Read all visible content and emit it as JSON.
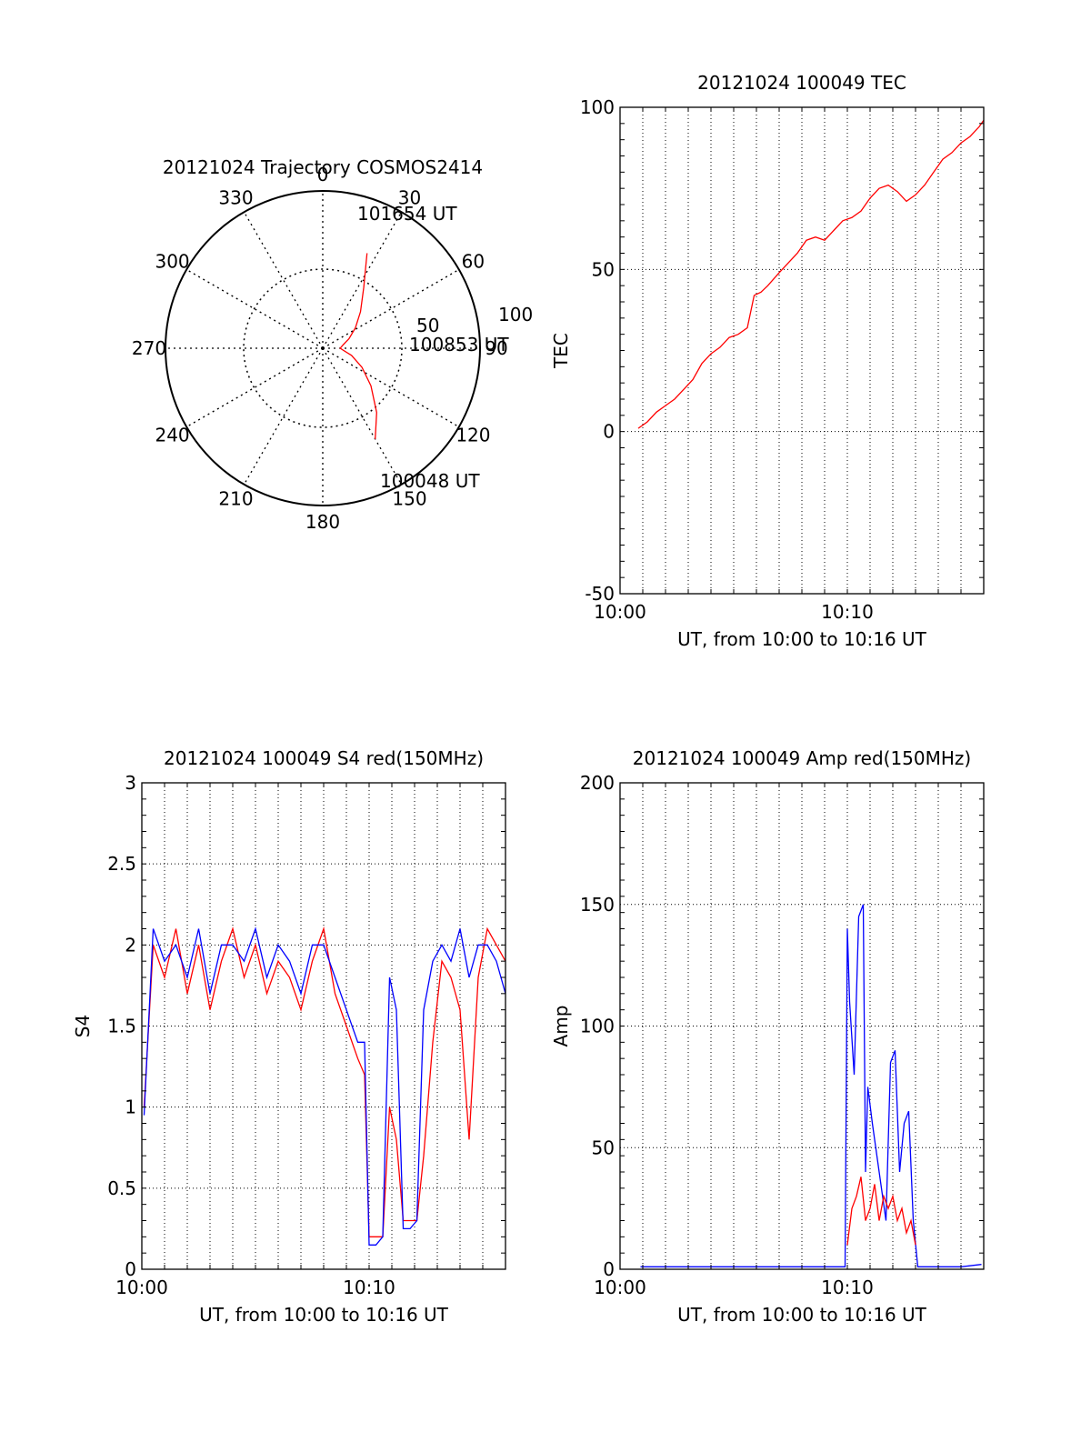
{
  "colors": {
    "red": "#ff0000",
    "blue": "#0000ff",
    "black": "#000000",
    "grid": "#000000"
  },
  "chart_data": [
    {
      "type": "polar",
      "title": "20121024 Trajectory COSMOS2414",
      "azimuth_labels": [
        "0",
        "30",
        "60",
        "90",
        "120",
        "150",
        "180",
        "210",
        "240",
        "270",
        "300",
        "330"
      ],
      "radial_labels": [
        "50",
        "100"
      ],
      "start_label": "100048 UT",
      "mid_label": "100853 UT",
      "end_label": "101654 UT",
      "trajectory": {
        "elevation_deg": [
          30,
          42,
          55,
          65,
          73,
          78,
          80,
          78,
          74,
          68,
          60,
          48,
          30
        ],
        "azimuth_deg": [
          150,
          140,
          128,
          116,
          104,
          96,
          90,
          80,
          70,
          58,
          46,
          34,
          25
        ]
      }
    },
    {
      "type": "line",
      "title": "20121024 100049 TEC",
      "xlabel": "UT, from 10:00 to 10:16 UT",
      "ylabel": "TEC",
      "xticks": [
        "10:00",
        "10:10"
      ],
      "yticks": [
        "100",
        "50",
        "0",
        "-50"
      ],
      "xlim": [
        0,
        16
      ],
      "ylim": [
        -50,
        100
      ],
      "series": [
        {
          "color": "red",
          "x": [
            0.8,
            1.2,
            1.6,
            2.0,
            2.4,
            2.8,
            3.2,
            3.6,
            4.0,
            4.4,
            4.8,
            5.2,
            5.6,
            5.9,
            6.2,
            6.5,
            7.0,
            7.4,
            7.8,
            8.2,
            8.6,
            9.0,
            9.4,
            9.8,
            10.2,
            10.6,
            11.0,
            11.4,
            11.8,
            12.2,
            12.6,
            13.0,
            13.4,
            13.8,
            14.2,
            14.6,
            15.0,
            15.4,
            15.8,
            16.0
          ],
          "y": [
            1,
            3,
            6,
            8,
            10,
            13,
            16,
            21,
            24,
            26,
            29,
            30,
            32,
            42,
            43,
            45,
            49,
            52,
            55,
            59,
            60,
            59,
            62,
            65,
            66,
            68,
            72,
            75,
            76,
            74,
            71,
            73,
            76,
            80,
            84,
            86,
            89,
            91,
            94,
            96
          ]
        }
      ]
    },
    {
      "type": "line",
      "title": "20121024 100049 S4 red(150MHz)",
      "xlabel": "UT, from 10:00 to 10:16 UT",
      "ylabel": "S4",
      "xticks": [
        "10:00",
        "10:10"
      ],
      "yticks": [
        "3",
        "2.5",
        "2",
        "1.5",
        "1",
        "0.5",
        "0"
      ],
      "xlim": [
        0,
        16
      ],
      "ylim": [
        0,
        3
      ],
      "series": [
        {
          "color": "red",
          "x": [
            0.1,
            0.5,
            1.0,
            1.5,
            2.0,
            2.5,
            3.0,
            3.5,
            4.0,
            4.5,
            5.0,
            5.5,
            6.0,
            6.5,
            7.0,
            7.5,
            8.0,
            8.5,
            9.0,
            9.5,
            9.8,
            10.0,
            10.3,
            10.6,
            10.9,
            11.2,
            11.5,
            11.8,
            12.1,
            12.4,
            12.8,
            13.2,
            13.6,
            14.0,
            14.4,
            14.8,
            15.2,
            15.6,
            16.0
          ],
          "y": [
            1.0,
            2.0,
            1.8,
            2.1,
            1.7,
            2.0,
            1.6,
            1.9,
            2.1,
            1.8,
            2.0,
            1.7,
            1.9,
            1.8,
            1.6,
            1.9,
            2.1,
            1.7,
            1.5,
            1.3,
            1.2,
            0.2,
            0.2,
            0.2,
            1.0,
            0.8,
            0.3,
            0.3,
            0.3,
            0.7,
            1.4,
            1.9,
            1.8,
            1.6,
            0.8,
            1.8,
            2.1,
            2.0,
            1.9
          ]
        },
        {
          "color": "blue",
          "x": [
            0.1,
            0.5,
            1.0,
            1.5,
            2.0,
            2.5,
            3.0,
            3.5,
            4.0,
            4.5,
            5.0,
            5.5,
            6.0,
            6.5,
            7.0,
            7.5,
            8.0,
            8.5,
            9.0,
            9.5,
            9.8,
            10.0,
            10.3,
            10.6,
            10.9,
            11.2,
            11.5,
            11.8,
            12.1,
            12.4,
            12.8,
            13.2,
            13.6,
            14.0,
            14.4,
            14.8,
            15.2,
            15.6,
            16.0
          ],
          "y": [
            0.95,
            2.1,
            1.9,
            2.0,
            1.8,
            2.1,
            1.7,
            2.0,
            2.0,
            1.9,
            2.1,
            1.8,
            2.0,
            1.9,
            1.7,
            2.0,
            2.0,
            1.8,
            1.6,
            1.4,
            1.4,
            0.15,
            0.15,
            0.2,
            1.8,
            1.6,
            0.25,
            0.25,
            0.3,
            1.6,
            1.9,
            2.0,
            1.9,
            2.1,
            1.8,
            2.0,
            2.0,
            1.9,
            1.7
          ]
        }
      ]
    },
    {
      "type": "line",
      "title": "20121024 100049 Amp red(150MHz)",
      "xlabel": "UT, from 10:00 to 10:16 UT",
      "ylabel": "Amp",
      "xticks": [
        "10:00",
        "10:10"
      ],
      "yticks": [
        "200",
        "150",
        "100",
        "50",
        "0"
      ],
      "xlim": [
        0,
        16
      ],
      "ylim": [
        0,
        200
      ],
      "series": [
        {
          "color": "blue",
          "x": [
            0.9,
            2.0,
            4.0,
            6.0,
            8.0,
            9.5,
            9.9,
            10.0,
            10.1,
            10.3,
            10.5,
            10.7,
            10.8,
            10.9,
            11.1,
            11.4,
            11.7,
            11.9,
            12.1,
            12.3,
            12.5,
            12.7,
            12.9,
            13.1,
            13.4,
            14.0,
            15.0,
            15.9
          ],
          "y": [
            1,
            1,
            1,
            1,
            1,
            1,
            1,
            140,
            110,
            80,
            145,
            150,
            40,
            75,
            60,
            40,
            20,
            85,
            90,
            40,
            60,
            65,
            20,
            1,
            1,
            1,
            1,
            2
          ]
        },
        {
          "color": "red",
          "x": [
            10.0,
            10.2,
            10.4,
            10.6,
            10.8,
            11.0,
            11.2,
            11.4,
            11.6,
            11.8,
            12.0,
            12.2,
            12.4,
            12.6,
            12.8,
            13.0
          ],
          "y": [
            10,
            25,
            30,
            38,
            20,
            25,
            35,
            20,
            30,
            25,
            30,
            20,
            25,
            15,
            20,
            10
          ]
        }
      ]
    }
  ]
}
